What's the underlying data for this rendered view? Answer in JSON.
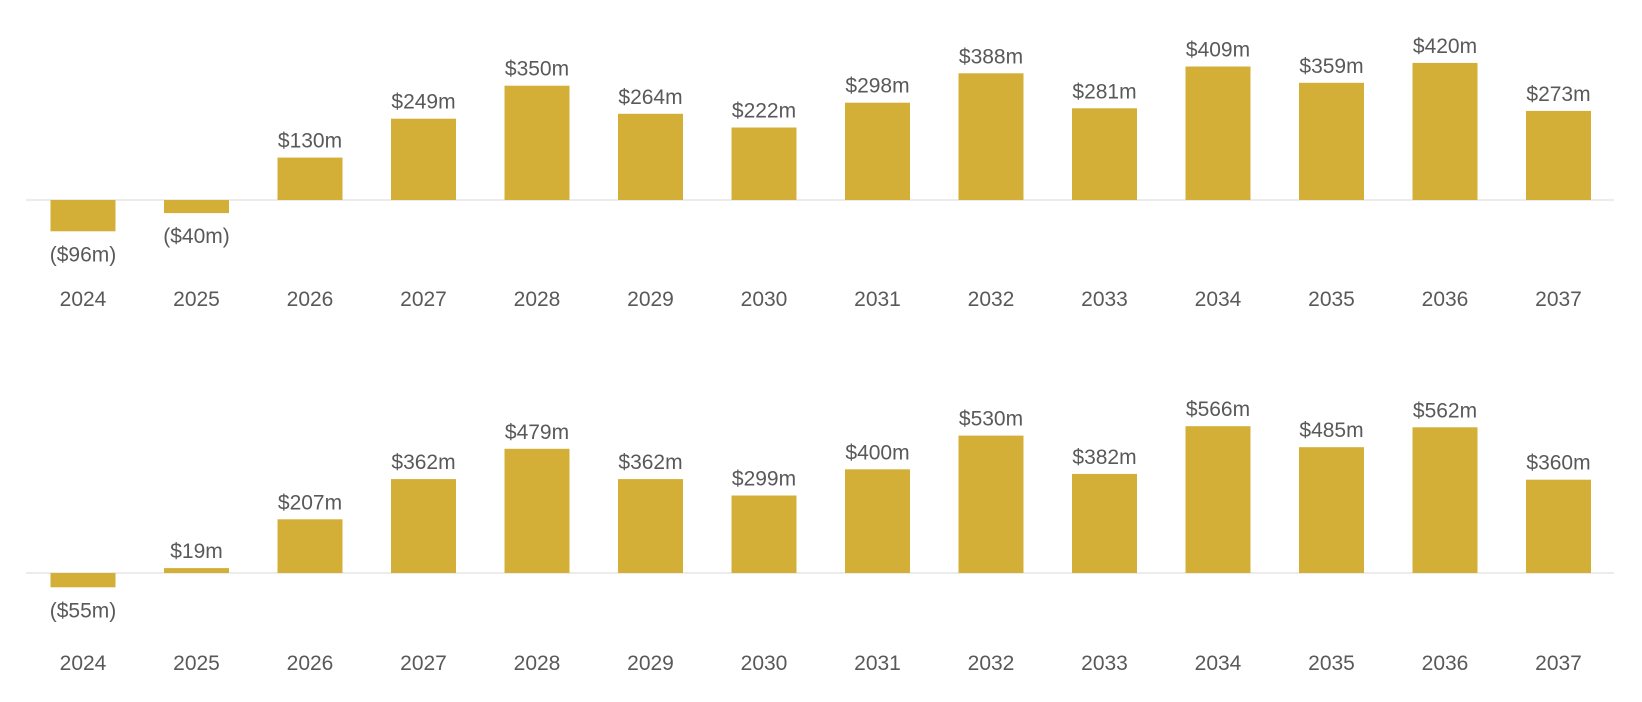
{
  "chart_data": [
    {
      "type": "bar",
      "categories": [
        "2024",
        "2025",
        "2026",
        "2027",
        "2028",
        "2029",
        "2030",
        "2031",
        "2032",
        "2033",
        "2034",
        "2035",
        "2036",
        "2037"
      ],
      "values": [
        -96,
        -40,
        130,
        249,
        350,
        264,
        222,
        298,
        388,
        281,
        409,
        359,
        420,
        273
      ],
      "data_labels": [
        "($96m)",
        "($40m)",
        "$130m",
        "$249m",
        "$350m",
        "$264m",
        "$222m",
        "$298m",
        "$388m",
        "$281m",
        "$409m",
        "$359m",
        "$420m",
        "$273m"
      ],
      "title": "",
      "xlabel": "",
      "ylabel": "",
      "grid": false,
      "legend": "none",
      "colors": {
        "bar": "#D4AF37",
        "axis": "#D9D9D9",
        "text": "#595959"
      }
    },
    {
      "type": "bar",
      "categories": [
        "2024",
        "2025",
        "2026",
        "2027",
        "2028",
        "2029",
        "2030",
        "2031",
        "2032",
        "2033",
        "2034",
        "2035",
        "2036",
        "2037"
      ],
      "values": [
        -55,
        19,
        207,
        362,
        479,
        362,
        299,
        400,
        530,
        382,
        566,
        485,
        562,
        360
      ],
      "data_labels": [
        "($55m)",
        "$19m",
        "$207m",
        "$362m",
        "$479m",
        "$362m",
        "$299m",
        "$400m",
        "$530m",
        "$382m",
        "$566m",
        "$485m",
        "$562m",
        "$360m"
      ],
      "title": "",
      "xlabel": "",
      "ylabel": "",
      "grid": false,
      "legend": "none",
      "colors": {
        "bar": "#D4AF37",
        "axis": "#D9D9D9",
        "text": "#595959"
      }
    }
  ]
}
